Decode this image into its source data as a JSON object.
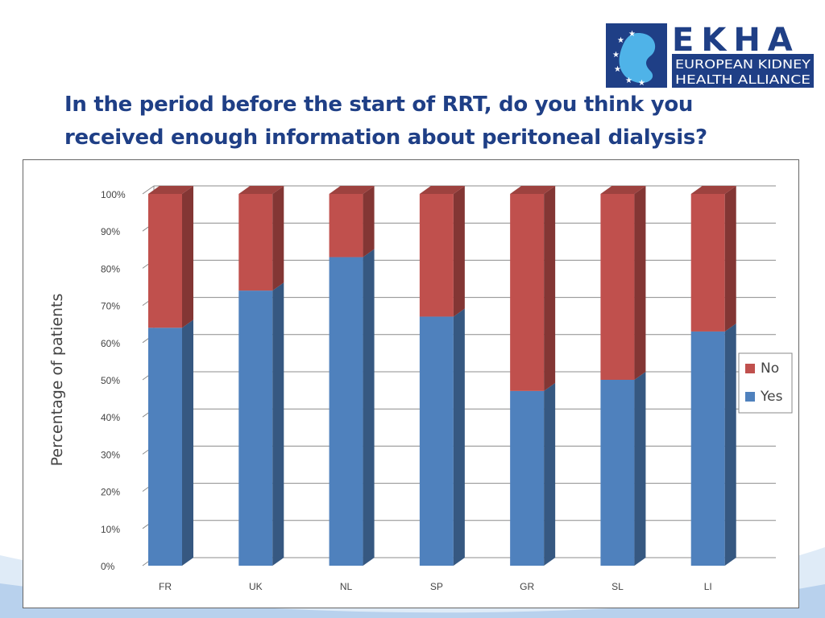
{
  "logo": {
    "wordmark": "EKHA",
    "line1": "EUROPEAN KIDNEY",
    "line2": "HEALTH ALLIANCE"
  },
  "slide": {
    "title_line1": "In the period before the start of RRT, do you think you",
    "title_line2": "received enough information about peritoneal dialysis?"
  },
  "colors": {
    "yes": "#4f81bd",
    "no": "#c0504d",
    "title": "#1f3f86"
  },
  "chart_data": {
    "type": "bar",
    "stacked": true,
    "ylabel": "Percentage of patients",
    "categories": [
      "FR",
      "UK",
      "NL",
      "SP",
      "GR",
      "SL",
      "LI"
    ],
    "series": [
      {
        "name": "Yes",
        "values": [
          64,
          74,
          83,
          67,
          47,
          50,
          63
        ]
      },
      {
        "name": "No",
        "values": [
          36,
          26,
          17,
          33,
          53,
          50,
          37
        ]
      }
    ],
    "ylim": [
      0,
      100
    ],
    "yticks": [
      "0%",
      "10%",
      "20%",
      "30%",
      "40%",
      "50%",
      "60%",
      "70%",
      "80%",
      "90%",
      "100%"
    ],
    "grid": true,
    "legend_position": "right"
  }
}
